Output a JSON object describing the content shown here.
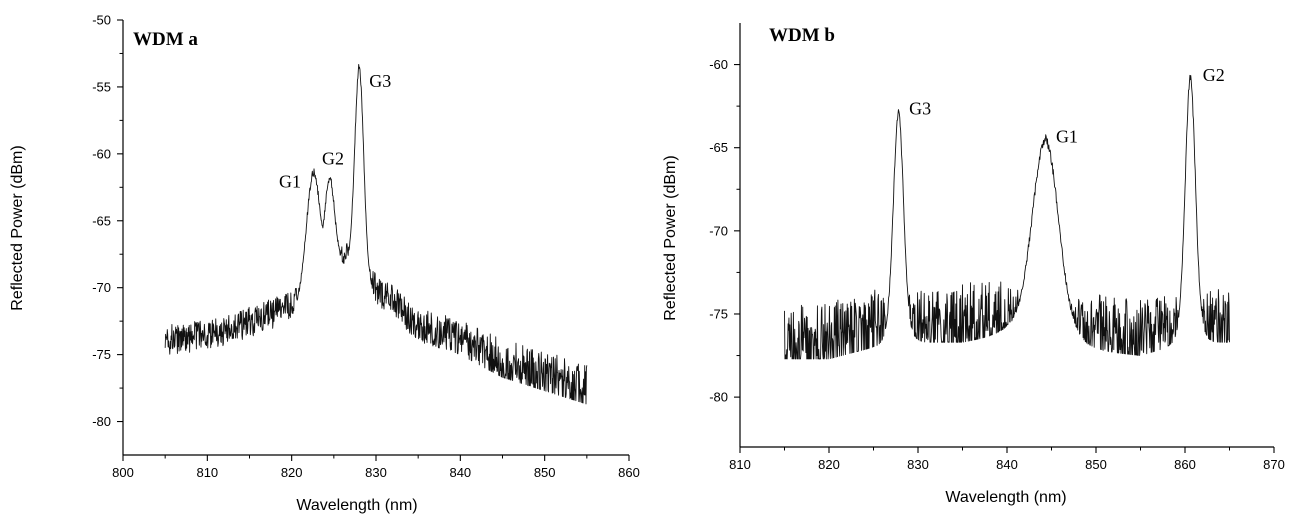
{
  "chart_data": [
    {
      "type": "line",
      "title": "WDM a",
      "xlabel": "Wavelength (nm)",
      "ylabel": "Reflected Power (dBm)",
      "xlim": [
        800,
        860
      ],
      "ylim": [
        -82.5,
        -50
      ],
      "x_ticks": [
        800,
        810,
        820,
        830,
        840,
        850,
        860
      ],
      "y_ticks": [
        -50,
        -55,
        -60,
        -65,
        -70,
        -75,
        -80
      ],
      "x_range": [
        805,
        855
      ],
      "baseline": {
        "x": [
          805,
          810,
          815,
          820,
          824,
          828,
          830,
          832,
          835,
          840,
          845,
          850,
          855
        ],
        "y": [
          -73.8,
          -73.5,
          -72.5,
          -71.3,
          -67.5,
          -67.5,
          -70.0,
          -71.0,
          -72.8,
          -73.8,
          -75.5,
          -76.5,
          -77.5
        ]
      },
      "peaks": [
        {
          "x": 822.6,
          "y": -61.4,
          "width": 0.75
        },
        {
          "x": 824.5,
          "y": -61.8,
          "width": 0.55
        },
        {
          "x": 828.0,
          "y": -53.5,
          "width": 0.5
        }
      ],
      "annotations": [
        {
          "text": "G1",
          "x": 818.5,
          "y": -62.5
        },
        {
          "text": "G2",
          "x": 823.6,
          "y": -60.8
        },
        {
          "text": "G3",
          "x": 829.2,
          "y": -55.0
        }
      ]
    },
    {
      "type": "line",
      "title": "WDM b",
      "xlabel": "Wavelength (nm)",
      "ylabel": "Reflected Power (dBm)",
      "xlim": [
        810,
        870
      ],
      "ylim": [
        -83,
        -57.5
      ],
      "x_ticks": [
        810,
        820,
        830,
        840,
        850,
        860,
        870
      ],
      "y_ticks": [
        -60,
        -65,
        -70,
        -75,
        -80
      ],
      "x_range": [
        815,
        865
      ],
      "baseline": {
        "x": [
          815,
          820,
          825,
          830,
          835,
          840,
          845,
          850,
          855,
          860,
          865
        ],
        "y": [
          -76.5,
          -76.5,
          -75.8,
          -75.5,
          -75.5,
          -75.0,
          -75.5,
          -76.0,
          -76.3,
          -75.5,
          -75.5
        ]
      },
      "peaks": [
        {
          "x": 827.8,
          "y": -62.9,
          "width": 0.55
        },
        {
          "x": 844.3,
          "y": -64.5,
          "width": 1.4
        },
        {
          "x": 860.6,
          "y": -60.8,
          "width": 0.55
        }
      ],
      "annotations": [
        {
          "text": "G3",
          "x": 829.0,
          "y": -63.0
        },
        {
          "text": "G1",
          "x": 845.5,
          "y": -64.7
        },
        {
          "text": "G2",
          "x": 862.0,
          "y": -61.0
        }
      ]
    }
  ]
}
